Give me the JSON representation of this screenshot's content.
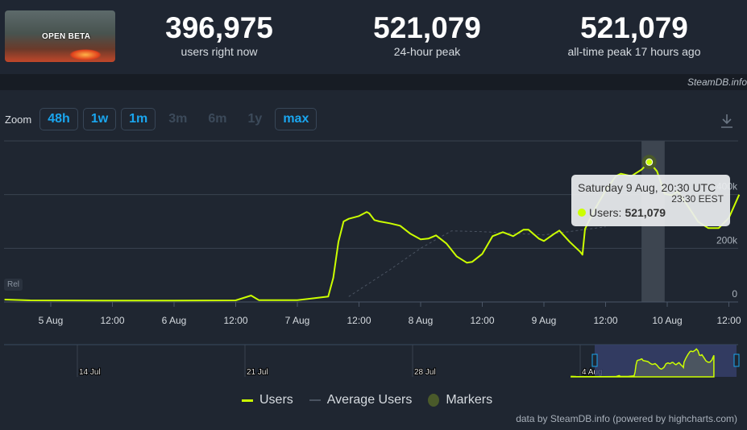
{
  "header": {
    "thumbnail_text": "OPEN BETA",
    "stats": [
      {
        "value": "396,975",
        "label": "users right now"
      },
      {
        "value": "521,079",
        "label": "24-hour peak"
      },
      {
        "value": "521,079",
        "label": "all-time peak 17 hours ago"
      }
    ]
  },
  "strip": {
    "site": "SteamDB.info"
  },
  "zoom": {
    "label": "Zoom",
    "buttons": [
      {
        "label": "48h",
        "enabled": true
      },
      {
        "label": "1w",
        "enabled": true
      },
      {
        "label": "1m",
        "enabled": true
      },
      {
        "label": "3m",
        "enabled": false
      },
      {
        "label": "6m",
        "enabled": false
      },
      {
        "label": "1y",
        "enabled": false
      },
      {
        "label": "max",
        "enabled": true
      }
    ]
  },
  "chart_data": {
    "type": "line",
    "colors": {
      "users": "#ccff00",
      "average": "#4a5361",
      "markers": "#4a5a2a"
    },
    "ylim": [
      0,
      600000
    ],
    "yticks": [
      {
        "v": 0,
        "label": "0"
      },
      {
        "v": 200000,
        "label": "200k"
      },
      {
        "v": 400000,
        "label": "400k"
      }
    ],
    "xticks": [
      "5 Aug",
      "12:00",
      "6 Aug",
      "12:00",
      "7 Aug",
      "12:00",
      "8 Aug",
      "12:00",
      "9 Aug",
      "12:00",
      "10 Aug",
      "12:00"
    ],
    "series": [
      {
        "name": "Users",
        "points": [
          [
            "4 Aug 15:00",
            9000
          ],
          [
            "4 Aug 20:00",
            6000
          ],
          [
            "5 Aug 12:00",
            5000
          ],
          [
            "6 Aug 00:00",
            5000
          ],
          [
            "6 Aug 12:00",
            6000
          ],
          [
            "6 Aug 15:00",
            24000
          ],
          [
            "6 Aug 16:30",
            7000
          ],
          [
            "7 Aug 00:00",
            7000
          ],
          [
            "7 Aug 06:00",
            20000
          ],
          [
            "7 Aug 07:00",
            90000
          ],
          [
            "7 Aug 08:00",
            224000
          ],
          [
            "7 Aug 09:00",
            300000
          ],
          [
            "7 Aug 10:00",
            310000
          ],
          [
            "7 Aug 12:00",
            320000
          ],
          [
            "7 Aug 13:30",
            335000
          ],
          [
            "7 Aug 14:00",
            330000
          ],
          [
            "7 Aug 15:00",
            305000
          ],
          [
            "7 Aug 16:00",
            300000
          ],
          [
            "7 Aug 18:00",
            293000
          ],
          [
            "7 Aug 20:00",
            284000
          ],
          [
            "7 Aug 22:00",
            254000
          ],
          [
            "8 Aug 00:00",
            233000
          ],
          [
            "8 Aug 01:30",
            236000
          ],
          [
            "8 Aug 03:00",
            248000
          ],
          [
            "8 Aug 05:00",
            218000
          ],
          [
            "8 Aug 07:00",
            170000
          ],
          [
            "8 Aug 09:00",
            146000
          ],
          [
            "8 Aug 10:00",
            149000
          ],
          [
            "8 Aug 12:00",
            179000
          ],
          [
            "8 Aug 14:00",
            245000
          ],
          [
            "8 Aug 16:00",
            260000
          ],
          [
            "8 Aug 18:00",
            245000
          ],
          [
            "8 Aug 20:00",
            269000
          ],
          [
            "8 Aug 21:00",
            269000
          ],
          [
            "8 Aug 23:00",
            236000
          ],
          [
            "9 Aug 00:00",
            227000
          ],
          [
            "9 Aug 02:00",
            254000
          ],
          [
            "9 Aug 03:00",
            266000
          ],
          [
            "9 Aug 05:00",
            224000
          ],
          [
            "9 Aug 07:00",
            188000
          ],
          [
            "9 Aug 07:30",
            176000
          ],
          [
            "9 Aug 08:00",
            272000
          ],
          [
            "9 Aug 10:00",
            349000
          ],
          [
            "9 Aug 12:00",
            415000
          ],
          [
            "9 Aug 14:00",
            469000
          ],
          [
            "9 Aug 15:00",
            478000
          ],
          [
            "9 Aug 17:00",
            469000
          ],
          [
            "9 Aug 19:00",
            493000
          ],
          [
            "9 Aug 20:30",
            521079
          ],
          [
            "9 Aug 22:00",
            487000
          ],
          [
            "9 Aug 23:30",
            403000
          ],
          [
            "10 Aug 01:00",
            397000
          ],
          [
            "10 Aug 02:00",
            412000
          ],
          [
            "10 Aug 04:00",
            358000
          ],
          [
            "10 Aug 06:00",
            299000
          ],
          [
            "10 Aug 08:00",
            275000
          ],
          [
            "10 Aug 10:00",
            275000
          ],
          [
            "10 Aug 12:00",
            313000
          ],
          [
            "10 Aug 14:00",
            400000
          ]
        ]
      },
      {
        "name": "Average Users",
        "points": [
          [
            "7 Aug 10:00",
            20000
          ],
          [
            "7 Aug 18:00",
            120000
          ],
          [
            "8 Aug 00:00",
            200000
          ],
          [
            "8 Aug 06:00",
            265000
          ],
          [
            "8 Aug 12:00",
            262000
          ],
          [
            "9 Aug 00:00",
            250000
          ],
          [
            "9 Aug 12:00",
            280000
          ]
        ]
      }
    ],
    "marker_band": [
      "9 Aug 19:00",
      "9 Aug 23:30"
    ],
    "tooltip": {
      "date": "Saturday 9 Aug, 20:30 UTC",
      "local": "23:30 EEST",
      "label": "Users:",
      "value": "521,079"
    },
    "navigator": {
      "ticks": [
        "14 Jul",
        "21 Jul",
        "28 Jul",
        "4 Aug"
      ]
    },
    "legend": [
      "Users",
      "Average Users",
      "Markers"
    ],
    "rel_label": "Rel"
  },
  "credit": "data by SteamDB.info (powered by highcharts.com)"
}
